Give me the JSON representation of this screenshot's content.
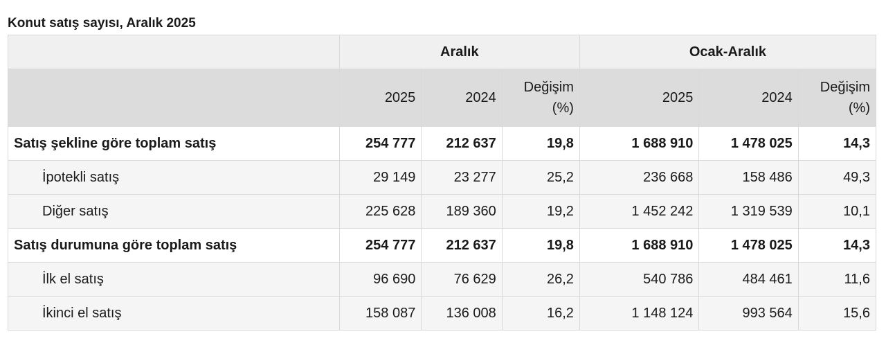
{
  "caption": "Konut satış sayısı, Aralık 2025",
  "header": {
    "groups": [
      "",
      "Aralık",
      "Ocak-Aralık"
    ],
    "columns": [
      "2025",
      "2024",
      "Değişim (%)",
      "2025",
      "2024",
      "Değişim (%)"
    ]
  },
  "rows": [
    {
      "label": "Satış şekline göre toplam satış",
      "bold": true,
      "values": [
        "254 777",
        "212 637",
        "19,8",
        "1 688 910",
        "1 478 025",
        "14,3"
      ]
    },
    {
      "label": "İpotekli satış",
      "bold": false,
      "values": [
        "29 149",
        "23 277",
        "25,2",
        "236 668",
        "158 486",
        "49,3"
      ]
    },
    {
      "label": "Diğer satış",
      "bold": false,
      "values": [
        "225 628",
        "189 360",
        "19,2",
        "1 452 242",
        "1 319 539",
        "10,1"
      ]
    },
    {
      "label": "Satış durumuna göre toplam satış",
      "bold": true,
      "values": [
        "254 777",
        "212 637",
        "19,8",
        "1 688 910",
        "1 478 025",
        "14,3"
      ]
    },
    {
      "label": "İlk el satış",
      "bold": false,
      "values": [
        "96 690",
        "76 629",
        "26,2",
        "540 786",
        "484 461",
        "11,6"
      ]
    },
    {
      "label": "İkinci el satış",
      "bold": false,
      "values": [
        "158 087",
        "136 008",
        "16,2",
        "1 148 124",
        "993 564",
        "15,6"
      ]
    }
  ]
}
